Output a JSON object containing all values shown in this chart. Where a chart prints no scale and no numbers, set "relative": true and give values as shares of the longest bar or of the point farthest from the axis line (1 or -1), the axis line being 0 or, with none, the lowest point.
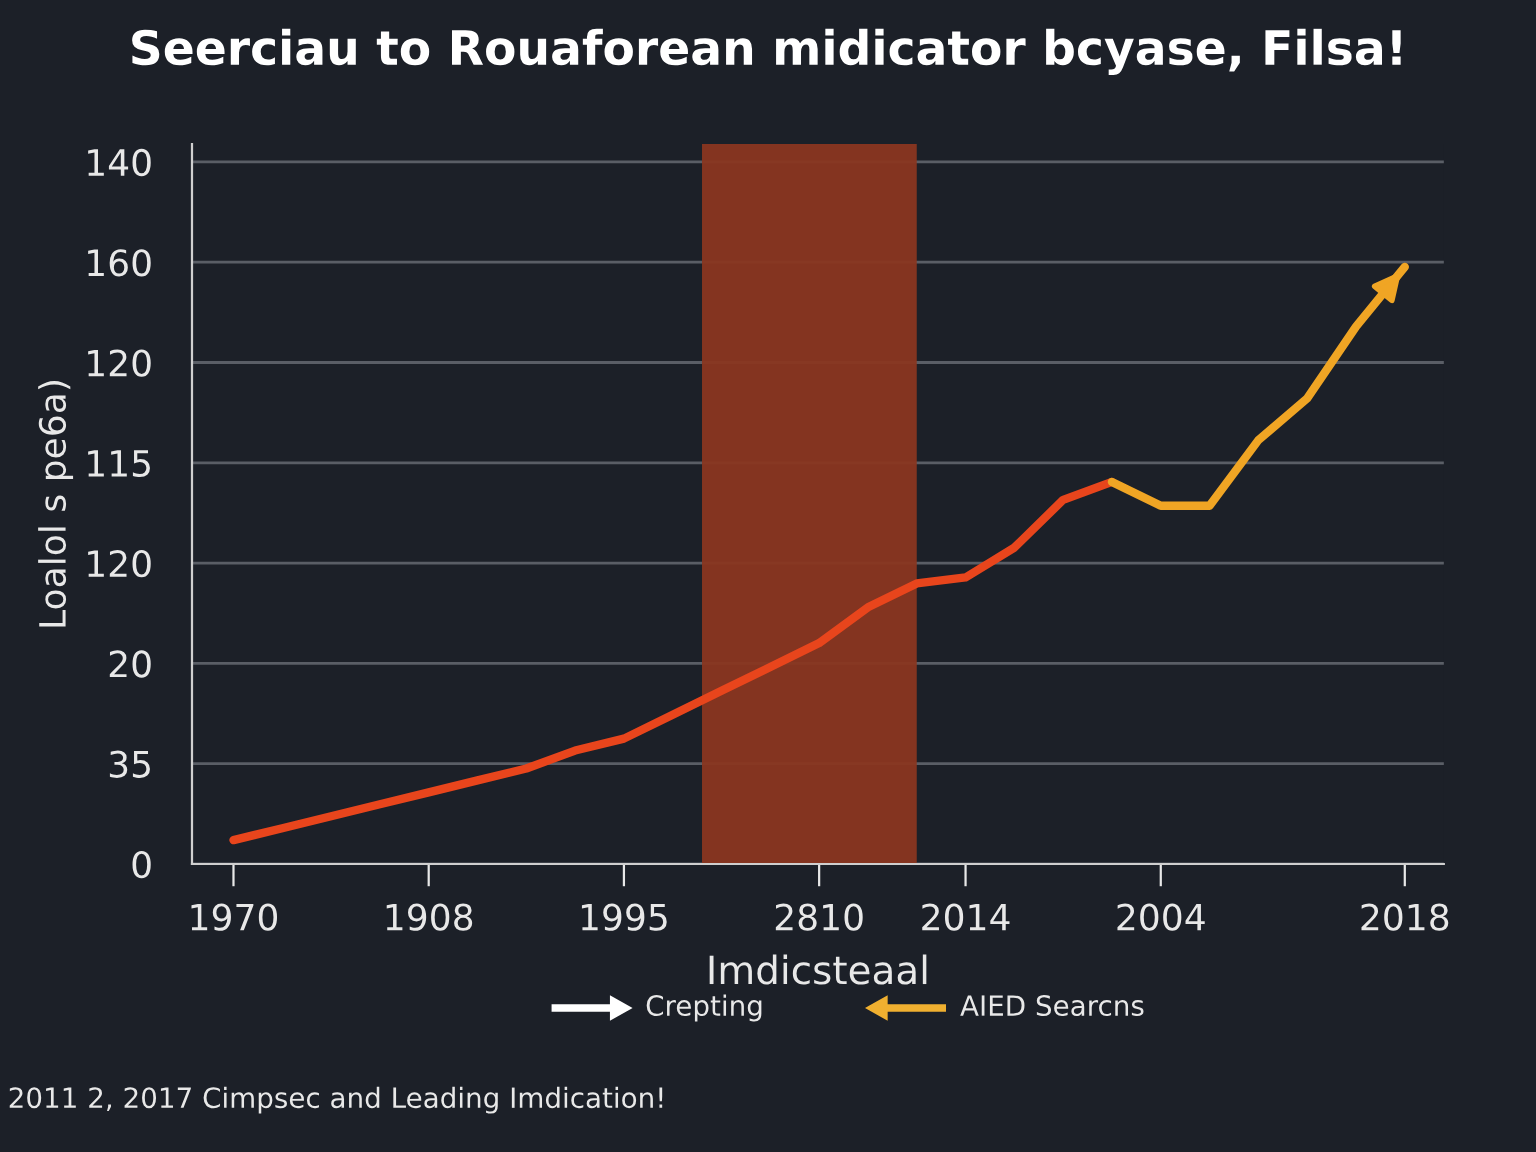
{
  "chart_data": {
    "type": "line",
    "relative": true,
    "title": "Seerciau to Rouaforean midicator bcyase, Filsa!",
    "xlabel": "Imdicsteaal",
    "ylabel": "Loalol s pe6a)",
    "categories": [
      "1970",
      null,
      null,
      null,
      "1908",
      null,
      null,
      null,
      "1995",
      null,
      null,
      null,
      "2810",
      null,
      null,
      "2014",
      null,
      null,
      null,
      "2004",
      null,
      null,
      null,
      null,
      "2018"
    ],
    "series": [
      {
        "color": "#e8451c",
        "values": [
          0.04,
          0.06,
          0.08,
          0.1,
          0.12,
          0.14,
          0.16,
          0.19,
          0.21,
          0.25,
          0.29,
          0.33,
          0.37,
          0.43,
          0.47,
          0.48,
          0.53,
          0.61,
          0.64,
          null,
          null,
          null,
          null,
          null,
          null
        ]
      },
      {
        "color": "#f0a524",
        "values": [
          null,
          null,
          null,
          null,
          null,
          null,
          null,
          null,
          null,
          null,
          null,
          null,
          null,
          null,
          null,
          null,
          null,
          null,
          0.64,
          0.6,
          0.6,
          0.71,
          0.78,
          0.9,
          1
        ]
      }
    ],
    "grid": "y",
    "annotations": [
      "Crepting",
      "AIED Searcns",
      "2011 2, 2017 Cimpsec and Leading Imdication!",
      "0",
      "35",
      "20",
      "120",
      "115",
      "120",
      "160",
      "140"
    ]
  }
}
